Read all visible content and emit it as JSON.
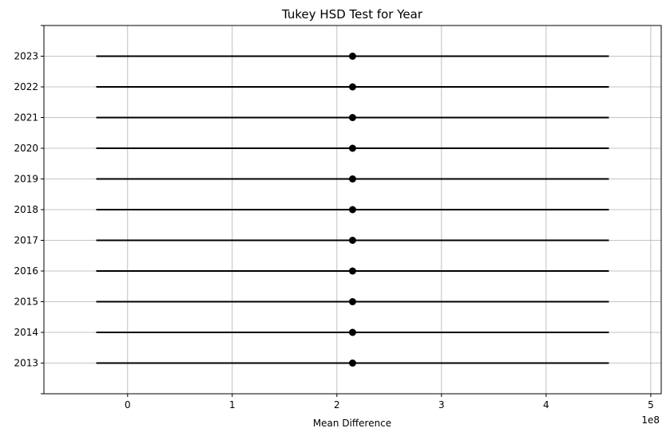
{
  "chart_data": {
    "type": "interval",
    "title": "Tukey HSD Test for Year",
    "xlabel": "Mean Difference",
    "ylabel": "",
    "x_offset_label": "1e8",
    "xlim": [
      -0.8,
      5.1
    ],
    "x_ticks": [
      0,
      1,
      2,
      3,
      4,
      5
    ],
    "x_tick_labels": [
      "0",
      "1",
      "2",
      "3",
      "4",
      "5"
    ],
    "grid": true,
    "categories": [
      "2013",
      "2014",
      "2015",
      "2016",
      "2017",
      "2018",
      "2019",
      "2020",
      "2021",
      "2022",
      "2023"
    ],
    "means": [
      2.15,
      2.15,
      2.15,
      2.15,
      2.15,
      2.15,
      2.15,
      2.15,
      2.15,
      2.15,
      2.15
    ],
    "lower": [
      -0.3,
      -0.3,
      -0.3,
      -0.3,
      -0.3,
      -0.3,
      -0.3,
      -0.3,
      -0.3,
      -0.3,
      -0.3
    ],
    "upper": [
      4.6,
      4.6,
      4.6,
      4.6,
      4.6,
      4.6,
      4.6,
      4.6,
      4.6,
      4.6,
      4.6
    ],
    "line_color": "#000000",
    "grid_color": "#b0b0b0"
  }
}
